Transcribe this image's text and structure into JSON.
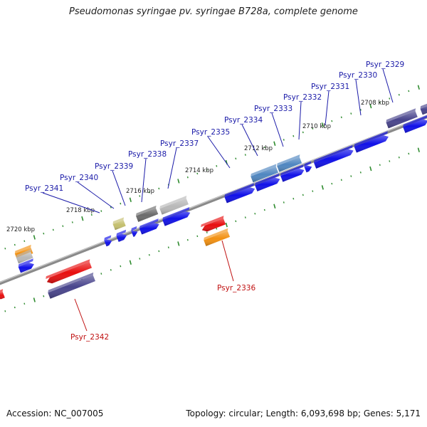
{
  "title": "Pseudomonas syringae pv. syringae B728a, complete genome",
  "footer": {
    "accession": "Accession: NC_007005",
    "summary": "Topology: circular; Length: 6,093,698 bp; Genes: 5,171"
  },
  "colors": {
    "forward_label": "#1a1aa8",
    "reverse_label": "#c01010",
    "backbone": "#8a8a8a",
    "tick": "#2e8b2e",
    "blue": "#1010e8",
    "red": "#e80e0e",
    "orange": "#f29010",
    "navy": "#48448c",
    "steel": "#4f86c0",
    "olive": "#c4bf6e",
    "darkgray": "#6b6b6b",
    "lightgray": "#b8b8b8"
  },
  "scale": {
    "ticks": [
      {
        "kbp": 2708,
        "label": "2708 kbp"
      },
      {
        "kbp": 2710,
        "label": "2710 kbp"
      },
      {
        "kbp": 2712,
        "label": "2712 kbp"
      },
      {
        "kbp": 2714,
        "label": "2714 kbp"
      },
      {
        "kbp": 2716,
        "label": "2716 kbp"
      },
      {
        "kbp": 2718,
        "label": "2718 kbp"
      },
      {
        "kbp": 2720,
        "label": "2720 kbp"
      }
    ]
  },
  "labels": [
    {
      "text": "Psyr_2329",
      "strand": "forward"
    },
    {
      "text": "Psyr_2330",
      "strand": "forward"
    },
    {
      "text": "Psyr_2331",
      "strand": "forward"
    },
    {
      "text": "Psyr_2332",
      "strand": "forward"
    },
    {
      "text": "Psyr_2333",
      "strand": "forward"
    },
    {
      "text": "Psyr_2334",
      "strand": "forward"
    },
    {
      "text": "Psyr_2335",
      "strand": "forward"
    },
    {
      "text": "Psyr_2337",
      "strand": "forward"
    },
    {
      "text": "Psyr_2338",
      "strand": "forward"
    },
    {
      "text": "Psyr_2339",
      "strand": "forward"
    },
    {
      "text": "Psyr_2340",
      "strand": "forward"
    },
    {
      "text": "Psyr_2341",
      "strand": "forward"
    },
    {
      "text": "Psyr_2336",
      "strand": "reverse"
    },
    {
      "text": "Psyr_2342",
      "strand": "reverse"
    }
  ]
}
